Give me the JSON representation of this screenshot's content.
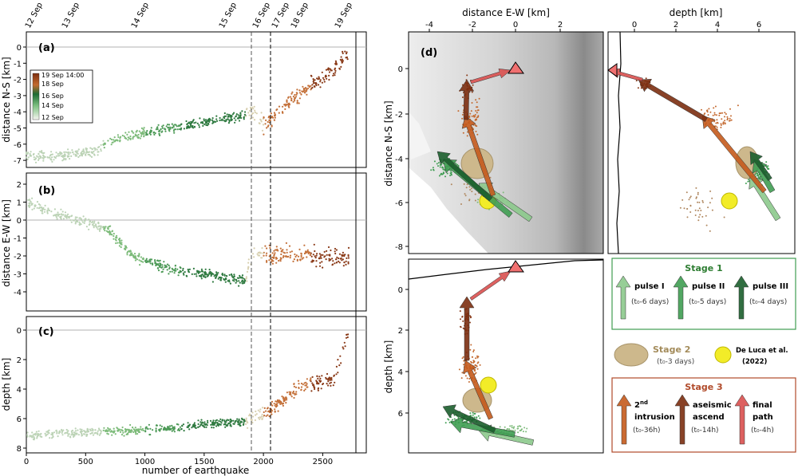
{
  "panels": {
    "a": {
      "label": "(a)",
      "ylabel": "distance N-S [km]",
      "yticks": [
        "0",
        "-1",
        "-2",
        "-3",
        "-4",
        "-5",
        "-6",
        "-7"
      ]
    },
    "b": {
      "label": "(b)",
      "ylabel": "distance E-W [km]",
      "yticks": [
        "2",
        "1",
        "0",
        "-1",
        "-2",
        "-3",
        "-4"
      ]
    },
    "c": {
      "label": "(c)",
      "ylabel": "depth [km]",
      "yticks": [
        "0",
        "2",
        "4",
        "6",
        "8"
      ]
    },
    "d": {
      "label": "(d)"
    }
  },
  "xaxis_left": {
    "label": "number of earthquake",
    "ticks": [
      "0",
      "500",
      "1000",
      "1500",
      "2000",
      "2500"
    ]
  },
  "top_dates": [
    "12 Sep",
    "13 Sep",
    "14 Sep",
    "15 Sep",
    "16 Sep",
    "17 Sep",
    "18 Sep",
    "19 Sep"
  ],
  "colorbar": {
    "labels": [
      "19 Sep 14:00",
      "18 Sep",
      "16 Sep",
      "14 Sep",
      "12 Sep"
    ],
    "colors": [
      "#7b2e10",
      "#c46a30",
      "#1e6b33",
      "#7dc080",
      "#f5f5f0"
    ]
  },
  "map": {
    "xlabel": "distance E-W [km]",
    "xticks": [
      "-4",
      "-2",
      "0",
      "2"
    ],
    "ylabel": "distance N-S [km]",
    "yticks": [
      "0",
      "-2",
      "-4",
      "-6",
      "-8"
    ]
  },
  "depth_side": {
    "xlabel": "depth [km]",
    "xticks": [
      "0",
      "2",
      "4",
      "6"
    ]
  },
  "depth_bottom": {
    "ylabel": "depth [km]",
    "yticks": [
      "0",
      "2",
      "4",
      "6"
    ]
  },
  "legend": {
    "stage1": {
      "title": "Stage 1",
      "items": [
        {
          "name": "pulse I",
          "sub": "(t₀-6 days)",
          "color": "#8cc98c"
        },
        {
          "name": "pulse II",
          "sub": "(t₀-5 days)",
          "color": "#3f9d52"
        },
        {
          "name": "pulse III",
          "sub": "(t₀-4 days)",
          "color": "#1b5e2c"
        }
      ]
    },
    "stage2": {
      "title": "Stage 2",
      "sub": "(t₀-3 days)",
      "deluca": "De Luca et al.",
      "deluca_year": "(2022)"
    },
    "stage3": {
      "title": "Stage 3",
      "items": [
        {
          "name1": "2",
          "name1sup": "nd",
          "name2": "intrusion",
          "sub": "(t₀-36h)",
          "color": "#c45a1c"
        },
        {
          "name1": "aseismic",
          "name1sup": "",
          "name2": "ascend",
          "sub": "(t₀-14h)",
          "color": "#7b2e10"
        },
        {
          "name1": "final",
          "name1sup": "",
          "name2": "path",
          "sub": "(t₀-4h)",
          "color": "#d9504f"
        }
      ]
    }
  },
  "colors": {
    "stage1_border": "#3f9d52",
    "stage1_title": "#2e7d32",
    "stage2_title": "#a38b5a",
    "stage3_border": "#b04a2a",
    "stage3_title": "#b04a2a",
    "ellipse": "#cdb88c",
    "deluca_circle": "#f2ec28"
  },
  "chart_data": [
    {
      "panel": "a",
      "type": "scatter",
      "ylabel": "distance N-S [km]",
      "xlabel": "number of earthquake",
      "xlim": [
        0,
        2780
      ],
      "ylim": [
        -7.5,
        0.5
      ],
      "trend_x": [
        0,
        300,
        600,
        700,
        1000,
        1300,
        1600,
        1850,
        1900,
        2000,
        2200,
        2400,
        2600,
        2700
      ],
      "trend_y": [
        -6.8,
        -6.7,
        -6.4,
        -5.8,
        -5.3,
        -4.9,
        -4.5,
        -4.2,
        -3.9,
        -4.8,
        -3.6,
        -2.4,
        -1.5,
        -0.5
      ]
    },
    {
      "panel": "b",
      "type": "scatter",
      "ylabel": "distance E-W [km]",
      "xlim": [
        0,
        2780
      ],
      "ylim": [
        -4.5,
        2.3
      ],
      "trend_x": [
        0,
        200,
        500,
        700,
        900,
        1200,
        1500,
        1850,
        1900,
        2000,
        2200,
        2400,
        2600,
        2700
      ],
      "trend_y": [
        1.0,
        0.4,
        -0.1,
        -0.6,
        -2.0,
        -2.7,
        -3.0,
        -3.4,
        -1.8,
        -1.9,
        -1.9,
        -2.0,
        -2.1,
        -2.2
      ]
    },
    {
      "panel": "c",
      "type": "scatter",
      "ylabel": "depth [km]",
      "xlim": [
        0,
        2780
      ],
      "ylim": [
        8.5,
        -0.5
      ],
      "trend_x": [
        0,
        300,
        600,
        900,
        1200,
        1500,
        1850,
        1900,
        2000,
        2200,
        2400,
        2600,
        2700
      ],
      "trend_y": [
        7.2,
        7.0,
        6.9,
        6.8,
        6.7,
        6.4,
        6.2,
        6.0,
        5.8,
        4.5,
        3.6,
        3.4,
        0.4
      ]
    }
  ]
}
